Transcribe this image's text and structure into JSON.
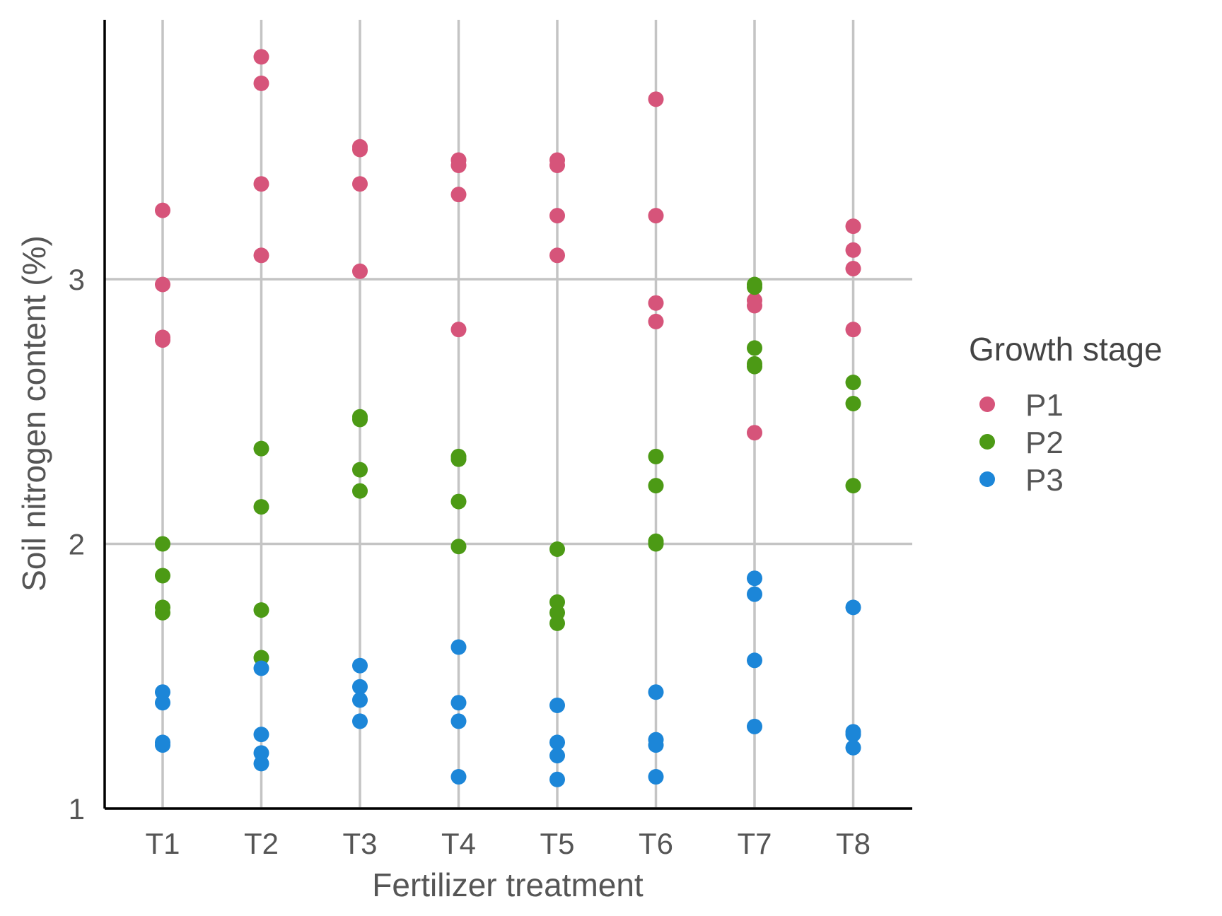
{
  "chart_data": {
    "type": "scatter",
    "xlabel": "Fertilizer treatment",
    "ylabel": "Soil nitrogen content (%)",
    "categories": [
      "T1",
      "T2",
      "T3",
      "T4",
      "T5",
      "T6",
      "T7",
      "T8"
    ],
    "ylim": [
      1,
      3.98
    ],
    "yticks": [
      1,
      2,
      3
    ],
    "grid": true,
    "legend": {
      "title": "Growth stage",
      "position": "right"
    },
    "series": [
      {
        "name": "P1",
        "color": "#d6547a",
        "points": [
          [
            "T1",
            3.26
          ],
          [
            "T1",
            2.98
          ],
          [
            "T1",
            2.78
          ],
          [
            "T1",
            2.77
          ],
          [
            "T2",
            3.84
          ],
          [
            "T2",
            3.74
          ],
          [
            "T2",
            3.36
          ],
          [
            "T2",
            3.09
          ],
          [
            "T3",
            3.5
          ],
          [
            "T3",
            3.49
          ],
          [
            "T3",
            3.36
          ],
          [
            "T3",
            3.03
          ],
          [
            "T4",
            3.45
          ],
          [
            "T4",
            3.43
          ],
          [
            "T4",
            3.32
          ],
          [
            "T4",
            2.81
          ],
          [
            "T5",
            3.45
          ],
          [
            "T5",
            3.43
          ],
          [
            "T5",
            3.24
          ],
          [
            "T5",
            3.09
          ],
          [
            "T6",
            3.68
          ],
          [
            "T6",
            3.24
          ],
          [
            "T6",
            2.91
          ],
          [
            "T6",
            2.84
          ],
          [
            "T7",
            2.92
          ],
          [
            "T7",
            2.9
          ],
          [
            "T7",
            2.42
          ],
          [
            "T8",
            3.2
          ],
          [
            "T8",
            3.11
          ],
          [
            "T8",
            3.04
          ],
          [
            "T8",
            2.81
          ]
        ]
      },
      {
        "name": "P2",
        "color": "#4c9a15",
        "points": [
          [
            "T1",
            2.0
          ],
          [
            "T1",
            1.88
          ],
          [
            "T1",
            1.76
          ],
          [
            "T1",
            1.74
          ],
          [
            "T2",
            2.36
          ],
          [
            "T2",
            2.14
          ],
          [
            "T2",
            1.75
          ],
          [
            "T2",
            1.57
          ],
          [
            "T3",
            2.48
          ],
          [
            "T3",
            2.47
          ],
          [
            "T3",
            2.28
          ],
          [
            "T3",
            2.2
          ],
          [
            "T4",
            2.33
          ],
          [
            "T4",
            2.32
          ],
          [
            "T4",
            2.16
          ],
          [
            "T4",
            1.99
          ],
          [
            "T5",
            1.98
          ],
          [
            "T5",
            1.78
          ],
          [
            "T5",
            1.74
          ],
          [
            "T5",
            1.7
          ],
          [
            "T6",
            2.33
          ],
          [
            "T6",
            2.22
          ],
          [
            "T6",
            2.01
          ],
          [
            "T6",
            2.0
          ],
          [
            "T7",
            2.98
          ],
          [
            "T7",
            2.97
          ],
          [
            "T7",
            2.74
          ],
          [
            "T7",
            2.68
          ],
          [
            "T7",
            2.67
          ],
          [
            "T8",
            2.61
          ],
          [
            "T8",
            2.53
          ],
          [
            "T8",
            2.22
          ]
        ]
      },
      {
        "name": "P3",
        "color": "#1c86d8",
        "points": [
          [
            "T1",
            1.44
          ],
          [
            "T1",
            1.4
          ],
          [
            "T1",
            1.25
          ],
          [
            "T1",
            1.24
          ],
          [
            "T2",
            1.53
          ],
          [
            "T2",
            1.28
          ],
          [
            "T2",
            1.21
          ],
          [
            "T2",
            1.17
          ],
          [
            "T3",
            1.54
          ],
          [
            "T3",
            1.46
          ],
          [
            "T3",
            1.41
          ],
          [
            "T3",
            1.33
          ],
          [
            "T4",
            1.61
          ],
          [
            "T4",
            1.4
          ],
          [
            "T4",
            1.33
          ],
          [
            "T4",
            1.12
          ],
          [
            "T5",
            1.39
          ],
          [
            "T5",
            1.25
          ],
          [
            "T5",
            1.2
          ],
          [
            "T5",
            1.11
          ],
          [
            "T6",
            1.44
          ],
          [
            "T6",
            1.26
          ],
          [
            "T6",
            1.24
          ],
          [
            "T6",
            1.12
          ],
          [
            "T7",
            1.87
          ],
          [
            "T7",
            1.81
          ],
          [
            "T7",
            1.56
          ],
          [
            "T7",
            1.31
          ],
          [
            "T8",
            1.76
          ],
          [
            "T8",
            1.29
          ],
          [
            "T8",
            1.28
          ],
          [
            "T8",
            1.23
          ]
        ]
      }
    ]
  }
}
